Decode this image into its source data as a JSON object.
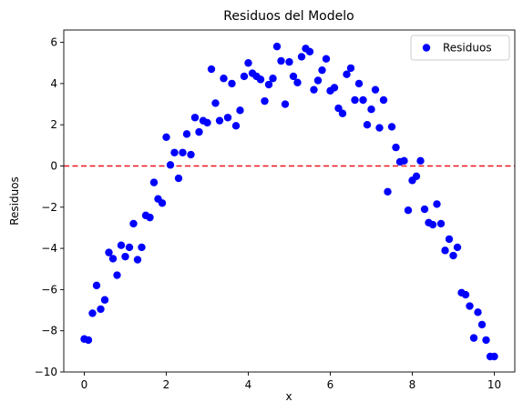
{
  "chart_data": {
    "type": "scatter",
    "title": "Residuos del Modelo",
    "xlabel": "x",
    "ylabel": "Residuos",
    "xlim": [
      -0.5,
      10.5
    ],
    "ylim": [
      -10,
      6.6
    ],
    "xticks": [
      0,
      2,
      4,
      6,
      8,
      10
    ],
    "yticks": [
      -10,
      -8,
      -6,
      -4,
      -2,
      0,
      2,
      4,
      6
    ],
    "grid": false,
    "legend": {
      "position": "top-right",
      "entries": [
        "Residuos"
      ]
    },
    "reference_line": {
      "y": 0,
      "color": "#e8141b",
      "style": "dashed"
    },
    "series": [
      {
        "name": "Residuos",
        "color": "#0000ff",
        "x": [
          0.0,
          0.1,
          0.2,
          0.3,
          0.4,
          0.5,
          0.6,
          0.7,
          0.8,
          0.9,
          1.0,
          1.1,
          1.2,
          1.3,
          1.4,
          1.5,
          1.6,
          1.7,
          1.8,
          1.9,
          2.0,
          2.1,
          2.2,
          2.3,
          2.4,
          2.5,
          2.6,
          2.7,
          2.8,
          2.9,
          3.0,
          3.1,
          3.2,
          3.3,
          3.4,
          3.5,
          3.6,
          3.7,
          3.8,
          3.9,
          4.0,
          4.1,
          4.2,
          4.3,
          4.4,
          4.5,
          4.6,
          4.7,
          4.8,
          4.9,
          5.0,
          5.1,
          5.2,
          5.3,
          5.4,
          5.5,
          5.6,
          5.7,
          5.8,
          5.9,
          6.0,
          6.1,
          6.2,
          6.3,
          6.4,
          6.5,
          6.6,
          6.7,
          6.8,
          6.9,
          7.0,
          7.1,
          7.2,
          7.3,
          7.4,
          7.5,
          7.6,
          7.7,
          7.8,
          7.9,
          8.0,
          8.1,
          8.2,
          8.3,
          8.4,
          8.5,
          8.6,
          8.7,
          8.8,
          8.9,
          9.0,
          9.1,
          9.2,
          9.3,
          9.4,
          9.5,
          9.6,
          9.7,
          9.8,
          9.9,
          10.0
        ],
        "y": [
          -8.4,
          -8.45,
          -7.15,
          -5.8,
          -6.95,
          -6.5,
          -4.2,
          -4.5,
          -5.3,
          -3.85,
          -4.4,
          -3.95,
          -2.8,
          -4.55,
          -3.95,
          -2.4,
          -2.5,
          -0.8,
          -1.6,
          -1.8,
          1.4,
          0.05,
          0.65,
          -0.6,
          0.65,
          1.55,
          0.55,
          2.35,
          1.65,
          2.2,
          2.1,
          4.7,
          3.05,
          2.2,
          4.25,
          2.35,
          4.0,
          1.95,
          2.7,
          4.35,
          5.0,
          4.5,
          4.35,
          4.2,
          3.15,
          3.95,
          4.25,
          5.8,
          5.1,
          3.0,
          5.05,
          4.35,
          4.05,
          5.3,
          5.7,
          5.55,
          3.7,
          4.15,
          4.65,
          5.2,
          3.65,
          3.8,
          2.8,
          2.55,
          4.45,
          4.75,
          3.2,
          4.0,
          3.2,
          2.0,
          2.75,
          3.7,
          1.85,
          3.2,
          -1.25,
          1.9,
          0.9,
          0.2,
          0.25,
          -2.15,
          -0.7,
          -0.5,
          0.25,
          -2.1,
          -2.75,
          -2.85,
          -1.85,
          -2.8,
          -4.1,
          -3.55,
          -4.35,
          -3.95,
          -6.15,
          -6.25,
          -6.8,
          -8.35,
          -7.1,
          -7.7,
          -8.45,
          -9.25,
          -9.25
        ]
      }
    ]
  }
}
